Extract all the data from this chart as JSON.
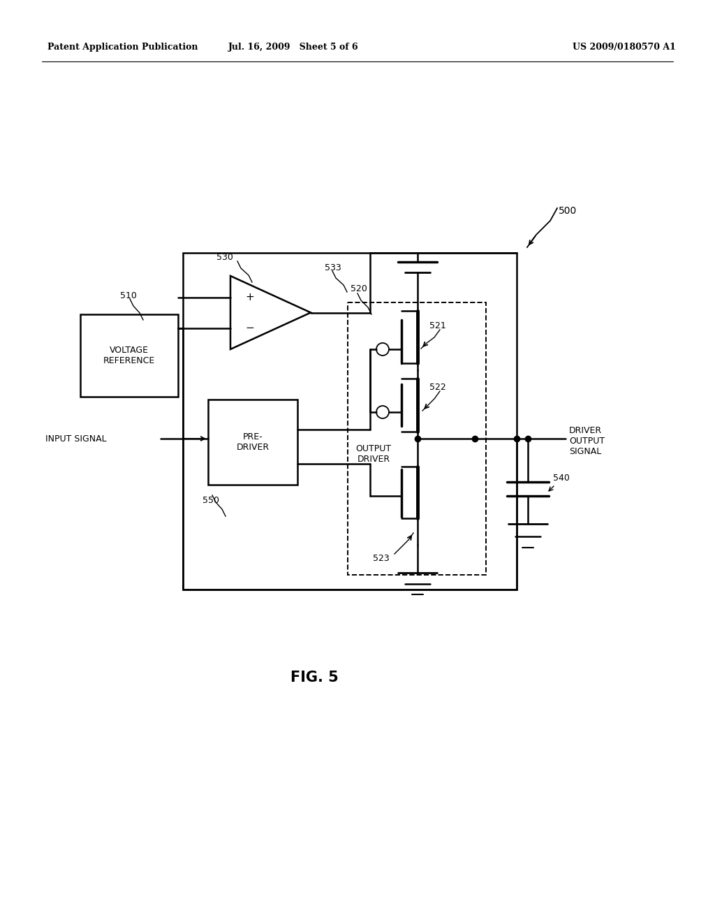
{
  "header_left": "Patent Application Publication",
  "header_mid": "Jul. 16, 2009   Sheet 5 of 6",
  "header_right": "US 2009/0180570 A1",
  "fig_label": "FIG. 5",
  "label_500": "500",
  "label_510": "510",
  "label_520": "520",
  "label_521": "521",
  "label_522": "522",
  "label_523": "523",
  "label_530": "530",
  "label_533": "533",
  "label_540": "540",
  "label_550": "550",
  "text_voltage_ref": "VOLTAGE\nREFERENCE",
  "text_predriver": "PRE-\nDRIVER",
  "text_output_driver": "OUTPUT\nDRIVER",
  "text_input_signal": "INPUT SIGNAL",
  "text_driver_output": "DRIVER\nOUTPUT\nSIGNAL",
  "bg_color": "#ffffff",
  "line_color": "#000000"
}
